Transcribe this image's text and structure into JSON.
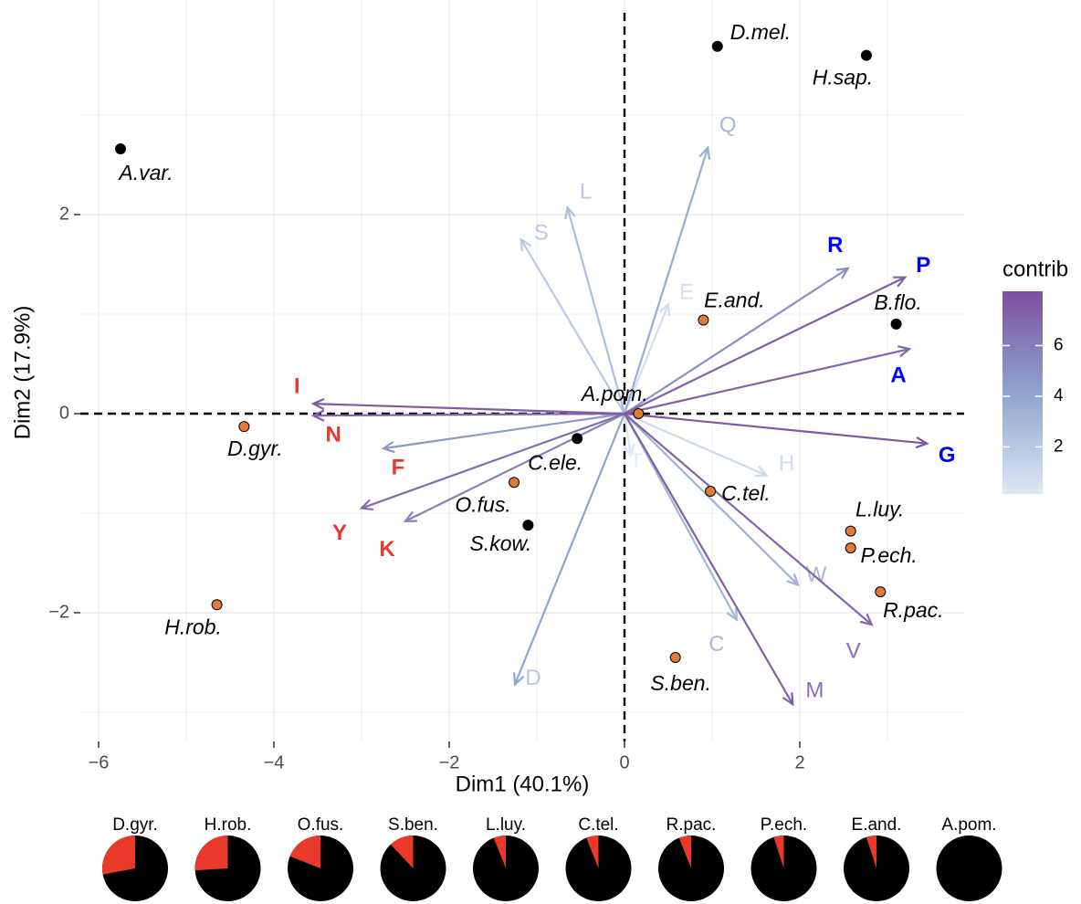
{
  "chart_data": {
    "type": "scatter",
    "subtype": "PCA biplot",
    "title": "",
    "xlabel": "Dim1 (40.1%)",
    "ylabel": "Dim2 (17.9%)",
    "xlim": [
      -6.2,
      3.8
    ],
    "ylim": [
      -3.2,
      4.0
    ],
    "x_ticks": [
      -6,
      -4,
      -2,
      0,
      2
    ],
    "x_tick_labels": [
      "−6",
      "−4",
      "−2",
      "0",
      "2"
    ],
    "y_ticks": [
      -2,
      0,
      2
    ],
    "y_tick_labels": [
      "−2",
      "0",
      "2"
    ],
    "grid": true,
    "reference_lines": {
      "x": 0,
      "y": 0,
      "style": "dashed"
    },
    "individuals": [
      {
        "label": "A.var.",
        "x": -5.75,
        "y": 2.66,
        "group": "black"
      },
      {
        "label": "D.mel.",
        "x": 1.06,
        "y": 3.69,
        "group": "black"
      },
      {
        "label": "H.sap.",
        "x": 2.76,
        "y": 3.6,
        "group": "black"
      },
      {
        "label": "B.flo.",
        "x": 3.1,
        "y": 0.9,
        "group": "black"
      },
      {
        "label": "C.ele.",
        "x": -0.54,
        "y": -0.25,
        "group": "black"
      },
      {
        "label": "S.kow.",
        "x": -1.1,
        "y": -1.12,
        "group": "black"
      },
      {
        "label": "E.and.",
        "x": 0.9,
        "y": 0.94,
        "group": "orange"
      },
      {
        "label": "A.pom.",
        "x": 0.16,
        "y": 0.0,
        "group": "orange"
      },
      {
        "label": "D.gyr.",
        "x": -4.34,
        "y": -0.13,
        "group": "orange"
      },
      {
        "label": "O.fus.",
        "x": -1.26,
        "y": -0.69,
        "group": "orange"
      },
      {
        "label": "C.tel.",
        "x": 0.98,
        "y": -0.78,
        "group": "orange"
      },
      {
        "label": "L.luy.",
        "x": 2.58,
        "y": -1.18,
        "group": "orange"
      },
      {
        "label": "P.ech.",
        "x": 2.58,
        "y": -1.35,
        "group": "orange"
      },
      {
        "label": "R.pac.",
        "x": 2.92,
        "y": -1.79,
        "group": "orange"
      },
      {
        "label": "H.rob.",
        "x": -4.65,
        "y": -1.92,
        "group": "orange"
      },
      {
        "label": "S.ben.",
        "x": 0.58,
        "y": -2.45,
        "group": "orange"
      }
    ],
    "variables": [
      {
        "label": "Q",
        "x": 0.95,
        "y": 2.67,
        "contrib": 3.5,
        "label_color": "#a8b8d6"
      },
      {
        "label": "L",
        "x": -0.65,
        "y": 2.07,
        "contrib": 2.5,
        "label_color": "#b8c6e0"
      },
      {
        "label": "S",
        "x": -1.18,
        "y": 1.75,
        "contrib": 1.8,
        "label_color": "#bccbe3"
      },
      {
        "label": "R",
        "x": 2.55,
        "y": 1.46,
        "contrib": 5.0,
        "label_color": "#0000ff"
      },
      {
        "label": "P",
        "x": 3.2,
        "y": 1.37,
        "contrib": 7.2,
        "label_color": "#0000ff"
      },
      {
        "label": "E",
        "x": 0.5,
        "y": 1.1,
        "contrib": 0.6,
        "label_color": "#d6e0ee"
      },
      {
        "label": "A",
        "x": 3.25,
        "y": 0.65,
        "contrib": 7.0,
        "label_color": "#0000ff"
      },
      {
        "label": "G",
        "x": 3.45,
        "y": -0.3,
        "contrib": 7.6,
        "label_color": "#0000ff"
      },
      {
        "label": "I",
        "x": -3.55,
        "y": 0.1,
        "contrib": 7.4,
        "label_color": "#e8392b"
      },
      {
        "label": "N",
        "x": -3.55,
        "y": -0.02,
        "contrib": 7.0,
        "label_color": "#e8392b"
      },
      {
        "label": "F",
        "x": -2.75,
        "y": -0.35,
        "contrib": 4.5,
        "label_color": "#e8392b"
      },
      {
        "label": "Y",
        "x": -3.0,
        "y": -0.95,
        "contrib": 6.6,
        "label_color": "#e8392b"
      },
      {
        "label": "K",
        "x": -2.5,
        "y": -1.08,
        "contrib": 5.6,
        "label_color": "#e8392b"
      },
      {
        "label": "D",
        "x": -1.25,
        "y": -2.72,
        "contrib": 4.0,
        "label_color": "#b8c6e0"
      },
      {
        "label": "H",
        "x": 1.62,
        "y": -0.62,
        "contrib": 0.8,
        "label_color": "#cfdbeb"
      },
      {
        "label": "W",
        "x": 1.98,
        "y": -1.72,
        "contrib": 3.2,
        "label_color": "#a8b8d6"
      },
      {
        "label": "C",
        "x": 1.28,
        "y": -2.07,
        "contrib": 3.0,
        "label_color": "#a8b8d6"
      },
      {
        "label": "V",
        "x": 2.82,
        "y": -2.12,
        "contrib": 7.0,
        "label_color": "#8a6fb8"
      },
      {
        "label": "M",
        "x": 1.92,
        "y": -2.92,
        "contrib": 7.2,
        "label_color": "#8a6fb8"
      },
      {
        "label": "T",
        "x": 0.07,
        "y": -0.42,
        "contrib": 0.2,
        "label_color": "#e6edf5"
      }
    ],
    "colors": {
      "point_black": "#000000",
      "point_orange": "#e07b39",
      "pie_red": "#e8392b",
      "pie_black": "#000000",
      "contrib_low": "#dde8f2",
      "contrib_mid": "#8fa4cf",
      "contrib_high": "#7c4f9e"
    },
    "legend": {
      "title": "contrib",
      "ticks": [
        2,
        4,
        6
      ],
      "range": [
        0,
        8
      ],
      "placement": "right"
    },
    "pies": [
      {
        "label": "D.gyr.",
        "red_fraction": 0.28
      },
      {
        "label": "H.rob.",
        "red_fraction": 0.26
      },
      {
        "label": "O.fus.",
        "red_fraction": 0.19
      },
      {
        "label": "S.ben.",
        "red_fraction": 0.12
      },
      {
        "label": "L.luy.",
        "red_fraction": 0.06
      },
      {
        "label": "C.tel.",
        "red_fraction": 0.06
      },
      {
        "label": "R.pac.",
        "red_fraction": 0.06
      },
      {
        "label": "P.ech.",
        "red_fraction": 0.05
      },
      {
        "label": "E.and.",
        "red_fraction": 0.05
      },
      {
        "label": "A.pom.",
        "red_fraction": 0.0
      }
    ]
  }
}
